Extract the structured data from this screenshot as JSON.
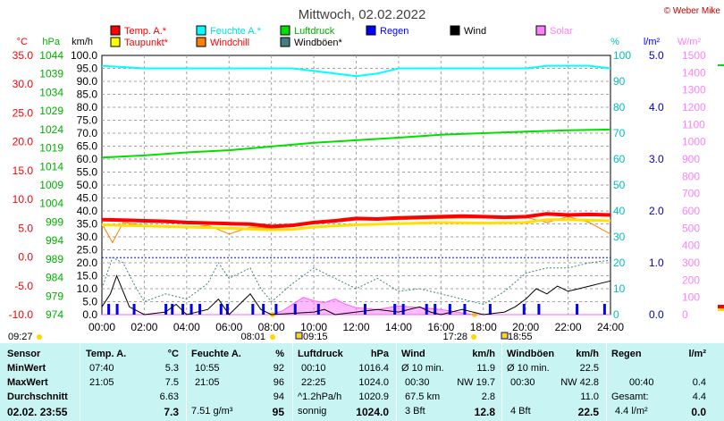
{
  "chart_data": {
    "type": "line",
    "title": "Mittwoch, 02.02.2022",
    "copyright": "© Weber Mike",
    "legend": [
      {
        "name": "Temp. A.*",
        "color": "#ff0000"
      },
      {
        "name": "Taupunkt*",
        "color": "#ffff00"
      },
      {
        "name": "Feuchte A.*",
        "color": "#00ffff"
      },
      {
        "name": "Windchill",
        "color": "#ff8000"
      },
      {
        "name": "Luftdruck",
        "color": "#00e000"
      },
      {
        "name": "Windböen*",
        "color": "#408080"
      },
      {
        "name": "Regen",
        "color": "#0000ff"
      },
      {
        "name": "Wind",
        "color": "#000000"
      },
      {
        "name": "Solar",
        "color": "#ff80ff"
      }
    ],
    "axes": {
      "temp": {
        "unit": "°C",
        "ticks": [
          "35.0",
          "30.0",
          "25.0",
          "20.0",
          "15.0",
          "10.0",
          "5.0",
          "0.0",
          "-5.0",
          "-10.0"
        ],
        "color": "#ff0000"
      },
      "pressure": {
        "unit": "hPa",
        "ticks": [
          "1044",
          "1039",
          "1034",
          "1029",
          "1024",
          "1019",
          "1014",
          "1009",
          "1004",
          "999",
          "994",
          "989",
          "984",
          "979",
          "974"
        ],
        "color": "#00c000"
      },
      "wind": {
        "unit": "km/h",
        "ticks": [
          "100.0",
          "95.0",
          "90.0",
          "85.0",
          "80.0",
          "75.0",
          "70.0",
          "65.0",
          "60.0",
          "55.0",
          "50.0",
          "45.0",
          "40.0",
          "35.0",
          "30.0",
          "25.0",
          "20.0",
          "15.0",
          "10.0",
          "5.0",
          "0.0"
        ],
        "color": "#000000"
      },
      "humidity": {
        "unit": "%",
        "ticks": [
          "100",
          "90",
          "80",
          "70",
          "60",
          "50",
          "40",
          "30",
          "20",
          "10",
          "0"
        ],
        "color": "#00c0c0"
      },
      "rain": {
        "unit": "l/m²",
        "ticks": [
          "5.0",
          "4.0",
          "3.0",
          "2.0",
          "1.0",
          "0.0"
        ],
        "color": "#0000ff"
      },
      "solar": {
        "unit": "W/m²",
        "ticks": [
          "1500",
          "1400",
          "1300",
          "1200",
          "1100",
          "1000",
          "900",
          "800",
          "700",
          "600",
          "500",
          "400",
          "300",
          "200",
          "100",
          "0"
        ],
        "color": "#ff80ff"
      }
    },
    "x_ticks": [
      "00:00",
      "02:00",
      "04:00",
      "06:00",
      "08:00",
      "10:00",
      "12:00",
      "14:00",
      "16:00",
      "18:00",
      "20:00",
      "22:00",
      "24:00"
    ],
    "sun_times": [
      "09:27",
      "08:01",
      "09:15",
      "17:28",
      "18:55"
    ],
    "series": {
      "temp_c": [
        [
          0,
          6.5
        ],
        [
          1,
          6.4
        ],
        [
          2,
          6.3
        ],
        [
          3,
          6.2
        ],
        [
          4,
          6.0
        ],
        [
          5,
          5.9
        ],
        [
          6,
          5.8
        ],
        [
          7,
          5.7
        ],
        [
          8,
          5.3
        ],
        [
          9,
          5.5
        ],
        [
          10,
          6.0
        ],
        [
          11,
          6.3
        ],
        [
          12,
          6.7
        ],
        [
          13,
          6.6
        ],
        [
          14,
          6.8
        ],
        [
          15,
          6.9
        ],
        [
          16,
          7.0
        ],
        [
          17,
          7.1
        ],
        [
          18,
          7.0
        ],
        [
          19,
          6.9
        ],
        [
          20,
          7.0
        ],
        [
          21,
          7.5
        ],
        [
          22,
          7.3
        ],
        [
          23,
          7.4
        ],
        [
          24,
          7.3
        ]
      ],
      "dewpoint_c": [
        [
          0,
          5.6
        ],
        [
          2,
          5.4
        ],
        [
          4,
          5.2
        ],
        [
          6,
          5.0
        ],
        [
          8,
          4.7
        ],
        [
          9,
          4.8
        ],
        [
          10,
          5.2
        ],
        [
          12,
          5.6
        ],
        [
          14,
          5.8
        ],
        [
          16,
          6.0
        ],
        [
          18,
          5.9
        ],
        [
          20,
          6.0
        ],
        [
          21,
          6.5
        ],
        [
          22,
          6.5
        ],
        [
          24,
          6.3
        ]
      ],
      "windchill_c": [
        [
          0,
          5.8
        ],
        [
          0.5,
          2.5
        ],
        [
          1,
          6.0
        ],
        [
          2,
          5.5
        ],
        [
          3,
          5.4
        ],
        [
          4,
          5.0
        ],
        [
          5,
          5.5
        ],
        [
          6,
          4.0
        ],
        [
          7,
          5.2
        ],
        [
          8,
          5.0
        ],
        [
          9,
          5.3
        ],
        [
          10,
          5.8
        ],
        [
          12,
          6.4
        ],
        [
          14,
          6.5
        ],
        [
          16,
          6.7
        ],
        [
          18,
          6.8
        ],
        [
          20,
          6.9
        ],
        [
          21,
          6.0
        ],
        [
          22,
          7.0
        ],
        [
          23,
          6.0
        ],
        [
          24,
          4.0
        ]
      ],
      "humidity_pct": [
        [
          0,
          96
        ],
        [
          2,
          95
        ],
        [
          4,
          95
        ],
        [
          6,
          95
        ],
        [
          8,
          95
        ],
        [
          9,
          95
        ],
        [
          10,
          94
        ],
        [
          11,
          93
        ],
        [
          12,
          92
        ],
        [
          13,
          93
        ],
        [
          14,
          95
        ],
        [
          16,
          95
        ],
        [
          18,
          95
        ],
        [
          20,
          95
        ],
        [
          21,
          96
        ],
        [
          23,
          96
        ],
        [
          24,
          95
        ]
      ],
      "pressure_hpa": [
        [
          0,
          1016.4
        ],
        [
          2,
          1017.0
        ],
        [
          4,
          1017.8
        ],
        [
          6,
          1018.4
        ],
        [
          8,
          1019.4
        ],
        [
          10,
          1020.4
        ],
        [
          12,
          1021.1
        ],
        [
          14,
          1021.8
        ],
        [
          16,
          1022.6
        ],
        [
          18,
          1023.0
        ],
        [
          20,
          1023.4
        ],
        [
          22,
          1023.8
        ],
        [
          24,
          1024.0
        ]
      ],
      "wind_kmh": [
        [
          0,
          3
        ],
        [
          0.4,
          8
        ],
        [
          0.7,
          15
        ],
        [
          1,
          9
        ],
        [
          1.3,
          3
        ],
        [
          2,
          0
        ],
        [
          3,
          1
        ],
        [
          3.5,
          4
        ],
        [
          4,
          0
        ],
        [
          5,
          2
        ],
        [
          5.5,
          6
        ],
        [
          6,
          0
        ],
        [
          6.5,
          4
        ],
        [
          7,
          8
        ],
        [
          7.5,
          2
        ],
        [
          8,
          0
        ],
        [
          10,
          1
        ],
        [
          10.5,
          2
        ],
        [
          11,
          0
        ],
        [
          12,
          1
        ],
        [
          13,
          2
        ],
        [
          14,
          1
        ],
        [
          15,
          3
        ],
        [
          15.5,
          1
        ],
        [
          16,
          0
        ],
        [
          17,
          2
        ],
        [
          18,
          0
        ],
        [
          19,
          1
        ],
        [
          19.5,
          3
        ],
        [
          20,
          6
        ],
        [
          20.5,
          10
        ],
        [
          21,
          8
        ],
        [
          21.5,
          11
        ],
        [
          22,
          9
        ],
        [
          22.5,
          10
        ],
        [
          23,
          11
        ],
        [
          23.5,
          12
        ],
        [
          24,
          13
        ]
      ],
      "gust_kmh": [
        [
          0,
          10
        ],
        [
          0.5,
          22
        ],
        [
          1,
          20
        ],
        [
          1.5,
          12
        ],
        [
          2,
          5
        ],
        [
          3,
          8
        ],
        [
          4,
          6
        ],
        [
          5,
          12
        ],
        [
          5.5,
          20
        ],
        [
          6,
          14
        ],
        [
          7,
          18
        ],
        [
          7.5,
          10
        ],
        [
          8,
          5
        ],
        [
          9,
          12
        ],
        [
          10,
          18
        ],
        [
          11,
          14
        ],
        [
          12,
          10
        ],
        [
          13,
          14
        ],
        [
          14,
          9
        ],
        [
          15,
          10
        ],
        [
          16,
          8
        ],
        [
          17,
          6
        ],
        [
          18,
          4
        ],
        [
          19,
          9
        ],
        [
          20,
          16
        ],
        [
          21,
          18
        ],
        [
          22,
          18
        ],
        [
          23,
          20
        ],
        [
          24,
          21
        ]
      ],
      "solar_wm2": [
        [
          0,
          0
        ],
        [
          8,
          0
        ],
        [
          8.5,
          20
        ],
        [
          9,
          60
        ],
        [
          9.5,
          100
        ],
        [
          10,
          80
        ],
        [
          10.5,
          70
        ],
        [
          11,
          90
        ],
        [
          11.5,
          60
        ],
        [
          12,
          40
        ],
        [
          13,
          30
        ],
        [
          14,
          50
        ],
        [
          15,
          40
        ],
        [
          16,
          30
        ],
        [
          17,
          10
        ],
        [
          17.5,
          0
        ],
        [
          24,
          0
        ]
      ],
      "rain_events": [
        0.3,
        0.7,
        1.5,
        3.0,
        3.3,
        3.8,
        4.2,
        4.6,
        5.6,
        5.9,
        7.1,
        7.6,
        8.2,
        9.1,
        10.2,
        12.4,
        13.8,
        14.2,
        15.3,
        15.7,
        16.4,
        17.1,
        18.3,
        19.9,
        20.6,
        22.4,
        23.7
      ]
    }
  },
  "table": {
    "headers": {
      "sensor": "Sensor",
      "temp": "Temp. A.",
      "temp_unit": "°C",
      "hum": "Feuchte A.",
      "hum_unit": "%",
      "press": "Luftdruck",
      "press_unit": "hPa",
      "wind": "Wind",
      "wind_unit": "km/h",
      "gust": "Windböen",
      "gust_unit": "km/h",
      "rain": "Regen",
      "rain_unit": "l/m²"
    },
    "rows": {
      "min": {
        "label": "MinWert",
        "temp_time": "07:40",
        "temp_val": "5.3",
        "hum_time": "10:55",
        "hum_val": "92",
        "press_time": "00:10",
        "press_val": "1016.4",
        "wind_a": "Ø 10 min.",
        "wind_b": "11.9",
        "gust_a": "Ø 10 min.",
        "gust_b": "22.5",
        "rain_a": "",
        "rain_b": ""
      },
      "max": {
        "label": "MaxWert",
        "temp_time": "21:05",
        "temp_val": "7.5",
        "hum_time": "21:05",
        "hum_val": "96",
        "press_time": "22:25",
        "press_val": "1024.0",
        "wind_a": "00:30",
        "wind_b": "NW 19.7",
        "gust_a": "00:30",
        "gust_b": "NW 42.8",
        "rain_a": "00:40",
        "rain_b": "0.4"
      },
      "avg": {
        "label": "Durchschnitt",
        "temp_time": "",
        "temp_val": "6.63",
        "hum_time": "",
        "hum_val": "94",
        "press_time": "^1.2hPa/h",
        "press_val": "1020.9",
        "wind_a": "67.5 km",
        "wind_b": "2.8",
        "gust_a": "",
        "gust_b": "11.0",
        "rain_a": "Gesamt:",
        "rain_b": "4.4"
      },
      "cur": {
        "label": "02.02. 23:55",
        "temp_time": "",
        "temp_val": "7.3",
        "hum_time": "7.51 g/m³",
        "hum_val": "95",
        "press_time": "sonnig",
        "press_val": "1024.0",
        "wind_a": "3 Bft",
        "wind_b": "12.8",
        "gust_a": "4 Bft",
        "gust_b": "22.5",
        "rain_a": "4.4 l/m²",
        "rain_b": "0.0"
      }
    }
  }
}
